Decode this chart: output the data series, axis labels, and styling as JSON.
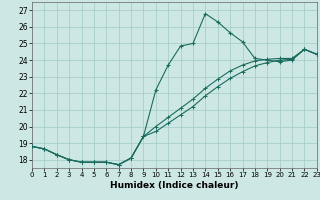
{
  "xlabel": "Humidex (Indice chaleur)",
  "bg_color": "#cde8e4",
  "grid_color": "#a8cfcb",
  "line_color": "#1a6b5e",
  "xlim": [
    0,
    23
  ],
  "ylim": [
    17.5,
    27.5
  ],
  "xticks": [
    0,
    1,
    2,
    3,
    4,
    5,
    6,
    7,
    8,
    9,
    10,
    11,
    12,
    13,
    14,
    15,
    16,
    17,
    18,
    19,
    20,
    21,
    22,
    23
  ],
  "yticks": [
    18,
    19,
    20,
    21,
    22,
    23,
    24,
    25,
    26,
    27
  ],
  "curve1_x": [
    0,
    1,
    2,
    3,
    4,
    5,
    6,
    7,
    8,
    9,
    10,
    11,
    12,
    13,
    14,
    15,
    16,
    17,
    18,
    19,
    20,
    21,
    22,
    23
  ],
  "curve1_y": [
    18.8,
    18.65,
    18.3,
    18.0,
    17.85,
    17.85,
    17.85,
    17.7,
    18.1,
    19.4,
    22.2,
    23.7,
    24.85,
    25.0,
    26.8,
    26.3,
    25.65,
    25.1,
    24.1,
    24.0,
    23.9,
    24.0,
    24.65,
    24.35
  ],
  "curve2_x": [
    0,
    1,
    2,
    3,
    4,
    5,
    6,
    7,
    8,
    9,
    10,
    11,
    12,
    13,
    14,
    15,
    16,
    17,
    18,
    19,
    20,
    21,
    22,
    23
  ],
  "curve2_y": [
    18.8,
    18.65,
    18.3,
    18.0,
    17.85,
    17.85,
    17.85,
    17.7,
    18.1,
    19.4,
    20.0,
    20.55,
    21.1,
    21.65,
    22.3,
    22.85,
    23.35,
    23.7,
    23.95,
    24.05,
    24.1,
    24.1,
    24.65,
    24.35
  ],
  "curve3_x": [
    0,
    1,
    2,
    3,
    4,
    5,
    6,
    7,
    8,
    9,
    10,
    11,
    12,
    13,
    14,
    15,
    16,
    17,
    18,
    19,
    20,
    21,
    22,
    23
  ],
  "curve3_y": [
    18.8,
    18.65,
    18.3,
    18.0,
    17.85,
    17.85,
    17.85,
    17.7,
    18.1,
    19.4,
    19.7,
    20.2,
    20.7,
    21.2,
    21.85,
    22.4,
    22.9,
    23.3,
    23.65,
    23.85,
    24.0,
    24.05,
    24.65,
    24.35
  ]
}
